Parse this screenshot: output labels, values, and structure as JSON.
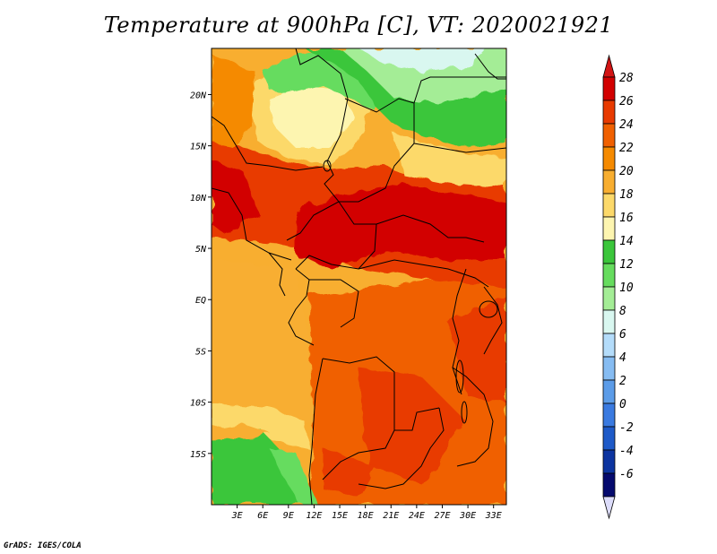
{
  "title": "Temperature at 900hPa [C], VT: 2020021921",
  "credit": "GrADS: IGES/COLA",
  "map": {
    "lat_ticks": [
      "20N",
      "15N",
      "10N",
      "5N",
      "EQ",
      "5S",
      "10S",
      "15S"
    ],
    "lat_values": [
      20,
      15,
      10,
      5,
      0,
      -5,
      -10,
      -15
    ],
    "lon_ticks": [
      "3E",
      "6E",
      "9E",
      "12E",
      "15E",
      "18E",
      "21E",
      "24E",
      "27E",
      "30E",
      "33E"
    ],
    "lon_values": [
      3,
      6,
      9,
      12,
      15,
      18,
      21,
      24,
      27,
      30,
      33
    ],
    "lat_range": [
      -20,
      24.5
    ],
    "lon_range": [
      0,
      34.5
    ]
  },
  "colorbar": {
    "labels": [
      "28",
      "26",
      "24",
      "22",
      "20",
      "18",
      "16",
      "14",
      "12",
      "10",
      "8",
      "6",
      "4",
      "2",
      "0",
      "-2",
      "-4",
      "-6"
    ],
    "colors": [
      "#d20000",
      "#e83a00",
      "#f06000",
      "#f58a00",
      "#f8ae30",
      "#fcd96a",
      "#fdf5b0",
      "#3bc63b",
      "#66dc5e",
      "#a4ed96",
      "#d9f7f0",
      "#b4dcfa",
      "#86bcf2",
      "#5c9ce8",
      "#3a7ae0",
      "#1e5ac8",
      "#0c34a0",
      "#050a6e"
    ],
    "top_color": "#d21414",
    "bottom_color": "#dcdcfa"
  }
}
